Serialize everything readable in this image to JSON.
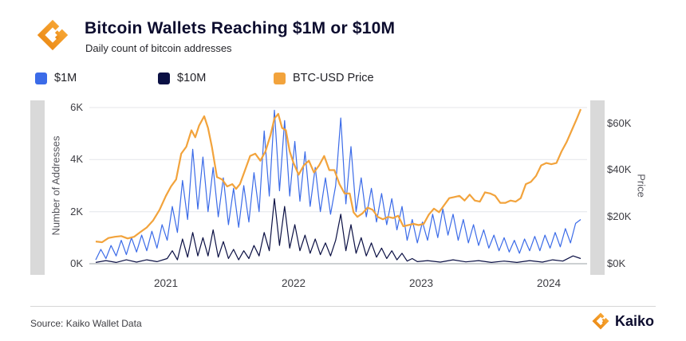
{
  "header": {
    "title": "Bitcoin Wallets Reaching $1M or $10M",
    "subtitle": "Daily count of bitcoin addresses",
    "accent_color": "#F59E1B",
    "title_color": "#0C0C2E"
  },
  "footer": {
    "source": "Source: Kaiko Wallet Data",
    "brand": "Kaiko"
  },
  "chart_data": {
    "type": "line",
    "title": "Bitcoin Wallets Reaching $1M or $10M",
    "subtitle": "Daily count of bitcoin addresses",
    "grid": "horizontal",
    "legend_position": "top",
    "x_domain": [
      2020.4,
      2024.3
    ],
    "x_ticks": [
      {
        "value": 2021,
        "label": "2021"
      },
      {
        "value": 2022,
        "label": "2022"
      },
      {
        "value": 2023,
        "label": "2023"
      },
      {
        "value": 2024,
        "label": "2024"
      }
    ],
    "left_axis": {
      "label": "Number of Addresses",
      "unit": "thousands of addresses",
      "max": 6,
      "ticks": [
        {
          "value": 0,
          "label": "0K"
        },
        {
          "value": 2,
          "label": "2K"
        },
        {
          "value": 4,
          "label": "4K"
        },
        {
          "value": 6,
          "label": "6K"
        }
      ]
    },
    "right_axis": {
      "label": "Price",
      "unit": "USD thousands",
      "max": 66.7,
      "ticks": [
        {
          "value": 0,
          "label": "$0K"
        },
        {
          "value": 20,
          "label": "$20K"
        },
        {
          "value": 40,
          "label": "$40K"
        },
        {
          "value": 60,
          "label": "$60K"
        }
      ]
    },
    "series": [
      {
        "name": "$1M",
        "color": "#3B6BE8",
        "axis": "left",
        "points": [
          [
            2020.45,
            0.15
          ],
          [
            2020.49,
            0.55
          ],
          [
            2020.53,
            0.2
          ],
          [
            2020.57,
            0.7
          ],
          [
            2020.61,
            0.3
          ],
          [
            2020.65,
            0.9
          ],
          [
            2020.69,
            0.35
          ],
          [
            2020.73,
            1.0
          ],
          [
            2020.77,
            0.45
          ],
          [
            2020.81,
            1.1
          ],
          [
            2020.85,
            0.5
          ],
          [
            2020.89,
            1.25
          ],
          [
            2020.93,
            0.6
          ],
          [
            2020.97,
            1.5
          ],
          [
            2021.01,
            0.9
          ],
          [
            2021.05,
            2.2
          ],
          [
            2021.09,
            1.2
          ],
          [
            2021.13,
            3.2
          ],
          [
            2021.17,
            1.7
          ],
          [
            2021.21,
            4.4
          ],
          [
            2021.25,
            2.1
          ],
          [
            2021.29,
            4.1
          ],
          [
            2021.33,
            2.0
          ],
          [
            2021.37,
            3.7
          ],
          [
            2021.41,
            1.8
          ],
          [
            2021.45,
            3.3
          ],
          [
            2021.49,
            1.5
          ],
          [
            2021.53,
            2.9
          ],
          [
            2021.57,
            1.4
          ],
          [
            2021.61,
            3.0
          ],
          [
            2021.65,
            1.6
          ],
          [
            2021.69,
            3.5
          ],
          [
            2021.73,
            2.0
          ],
          [
            2021.77,
            5.1
          ],
          [
            2021.81,
            2.6
          ],
          [
            2021.85,
            5.9
          ],
          [
            2021.89,
            2.8
          ],
          [
            2021.93,
            5.5
          ],
          [
            2021.97,
            2.6
          ],
          [
            2022.01,
            4.7
          ],
          [
            2022.05,
            2.4
          ],
          [
            2022.09,
            4.3
          ],
          [
            2022.13,
            2.2
          ],
          [
            2022.17,
            3.7
          ],
          [
            2022.21,
            2.0
          ],
          [
            2022.25,
            3.3
          ],
          [
            2022.29,
            1.9
          ],
          [
            2022.33,
            3.0
          ],
          [
            2022.37,
            5.6
          ],
          [
            2022.41,
            2.3
          ],
          [
            2022.45,
            4.5
          ],
          [
            2022.49,
            2.0
          ],
          [
            2022.53,
            3.3
          ],
          [
            2022.57,
            1.8
          ],
          [
            2022.61,
            2.9
          ],
          [
            2022.65,
            1.6
          ],
          [
            2022.69,
            2.7
          ],
          [
            2022.73,
            1.5
          ],
          [
            2022.77,
            2.5
          ],
          [
            2022.81,
            1.3
          ],
          [
            2022.85,
            2.2
          ],
          [
            2022.89,
            0.9
          ],
          [
            2022.93,
            1.7
          ],
          [
            2022.97,
            0.8
          ],
          [
            2023.01,
            1.6
          ],
          [
            2023.05,
            0.9
          ],
          [
            2023.09,
            1.9
          ],
          [
            2023.13,
            1.0
          ],
          [
            2023.17,
            2.1
          ],
          [
            2023.21,
            1.1
          ],
          [
            2023.25,
            1.9
          ],
          [
            2023.29,
            0.9
          ],
          [
            2023.33,
            1.7
          ],
          [
            2023.37,
            0.8
          ],
          [
            2023.41,
            1.5
          ],
          [
            2023.45,
            0.7
          ],
          [
            2023.49,
            1.3
          ],
          [
            2023.53,
            0.6
          ],
          [
            2023.57,
            1.1
          ],
          [
            2023.61,
            0.5
          ],
          [
            2023.65,
            1.0
          ],
          [
            2023.69,
            0.45
          ],
          [
            2023.73,
            0.9
          ],
          [
            2023.77,
            0.4
          ],
          [
            2023.81,
            0.95
          ],
          [
            2023.85,
            0.5
          ],
          [
            2023.89,
            1.05
          ],
          [
            2023.93,
            0.5
          ],
          [
            2023.97,
            1.1
          ],
          [
            2024.01,
            0.6
          ],
          [
            2024.05,
            1.2
          ],
          [
            2024.09,
            0.65
          ],
          [
            2024.13,
            1.35
          ],
          [
            2024.17,
            0.8
          ],
          [
            2024.21,
            1.55
          ],
          [
            2024.25,
            1.7
          ]
        ]
      },
      {
        "name": "$10M",
        "color": "#0B1044",
        "axis": "left",
        "points": [
          [
            2020.45,
            0.05
          ],
          [
            2020.53,
            0.12
          ],
          [
            2020.61,
            0.05
          ],
          [
            2020.69,
            0.15
          ],
          [
            2020.77,
            0.06
          ],
          [
            2020.85,
            0.15
          ],
          [
            2020.93,
            0.08
          ],
          [
            2021.01,
            0.2
          ],
          [
            2021.05,
            0.5
          ],
          [
            2021.09,
            0.15
          ],
          [
            2021.13,
            0.95
          ],
          [
            2021.17,
            0.25
          ],
          [
            2021.21,
            1.2
          ],
          [
            2021.25,
            0.3
          ],
          [
            2021.29,
            1.0
          ],
          [
            2021.33,
            0.3
          ],
          [
            2021.37,
            1.3
          ],
          [
            2021.41,
            0.25
          ],
          [
            2021.45,
            0.85
          ],
          [
            2021.49,
            0.2
          ],
          [
            2021.53,
            0.55
          ],
          [
            2021.57,
            0.15
          ],
          [
            2021.61,
            0.5
          ],
          [
            2021.65,
            0.2
          ],
          [
            2021.69,
            0.7
          ],
          [
            2021.73,
            0.3
          ],
          [
            2021.77,
            1.2
          ],
          [
            2021.81,
            0.5
          ],
          [
            2021.85,
            2.5
          ],
          [
            2021.89,
            0.7
          ],
          [
            2021.93,
            2.2
          ],
          [
            2021.97,
            0.6
          ],
          [
            2022.01,
            1.5
          ],
          [
            2022.05,
            0.5
          ],
          [
            2022.09,
            1.1
          ],
          [
            2022.13,
            0.4
          ],
          [
            2022.17,
            0.95
          ],
          [
            2022.21,
            0.35
          ],
          [
            2022.25,
            0.8
          ],
          [
            2022.29,
            0.3
          ],
          [
            2022.33,
            0.9
          ],
          [
            2022.37,
            1.9
          ],
          [
            2022.41,
            0.5
          ],
          [
            2022.45,
            1.5
          ],
          [
            2022.49,
            0.4
          ],
          [
            2022.53,
            1.0
          ],
          [
            2022.57,
            0.3
          ],
          [
            2022.61,
            0.8
          ],
          [
            2022.65,
            0.25
          ],
          [
            2022.69,
            0.6
          ],
          [
            2022.73,
            0.2
          ],
          [
            2022.77,
            0.5
          ],
          [
            2022.81,
            0.15
          ],
          [
            2022.85,
            0.4
          ],
          [
            2022.89,
            0.1
          ],
          [
            2022.93,
            0.2
          ],
          [
            2022.97,
            0.08
          ],
          [
            2023.05,
            0.12
          ],
          [
            2023.15,
            0.06
          ],
          [
            2023.25,
            0.15
          ],
          [
            2023.35,
            0.07
          ],
          [
            2023.45,
            0.12
          ],
          [
            2023.55,
            0.05
          ],
          [
            2023.65,
            0.1
          ],
          [
            2023.75,
            0.05
          ],
          [
            2023.85,
            0.12
          ],
          [
            2023.95,
            0.06
          ],
          [
            2024.03,
            0.15
          ],
          [
            2024.11,
            0.1
          ],
          [
            2024.19,
            0.3
          ],
          [
            2024.25,
            0.2
          ]
        ]
      },
      {
        "name": "BTC-USD Price",
        "color": "#F2A33C",
        "axis": "right",
        "points": [
          [
            2020.45,
            9.5
          ],
          [
            2020.5,
            9.2
          ],
          [
            2020.55,
            11.0
          ],
          [
            2020.6,
            11.5
          ],
          [
            2020.65,
            11.8
          ],
          [
            2020.7,
            10.8
          ],
          [
            2020.75,
            11.5
          ],
          [
            2020.8,
            13.5
          ],
          [
            2020.85,
            15.5
          ],
          [
            2020.9,
            18.5
          ],
          [
            2020.95,
            23.0
          ],
          [
            2021.0,
            29.0
          ],
          [
            2021.04,
            33.0
          ],
          [
            2021.08,
            36.0
          ],
          [
            2021.12,
            47.0
          ],
          [
            2021.16,
            50.0
          ],
          [
            2021.2,
            57.0
          ],
          [
            2021.23,
            54.0
          ],
          [
            2021.26,
            59.0
          ],
          [
            2021.3,
            63.0
          ],
          [
            2021.33,
            58.0
          ],
          [
            2021.36,
            50.0
          ],
          [
            2021.4,
            37.0
          ],
          [
            2021.44,
            36.0
          ],
          [
            2021.48,
            33.0
          ],
          [
            2021.52,
            34.0
          ],
          [
            2021.55,
            32.0
          ],
          [
            2021.58,
            34.0
          ],
          [
            2021.62,
            40.0
          ],
          [
            2021.66,
            46.0
          ],
          [
            2021.7,
            47.0
          ],
          [
            2021.74,
            44.0
          ],
          [
            2021.78,
            48.0
          ],
          [
            2021.82,
            55.0
          ],
          [
            2021.85,
            62.0
          ],
          [
            2021.88,
            64.0
          ],
          [
            2021.91,
            58.0
          ],
          [
            2021.94,
            57.0
          ],
          [
            2021.97,
            48.0
          ],
          [
            2022.0,
            43.0
          ],
          [
            2022.04,
            38.0
          ],
          [
            2022.08,
            42.0
          ],
          [
            2022.12,
            44.0
          ],
          [
            2022.16,
            39.0
          ],
          [
            2022.2,
            42.0
          ],
          [
            2022.24,
            46.0
          ],
          [
            2022.28,
            40.0
          ],
          [
            2022.32,
            40.0
          ],
          [
            2022.36,
            34.0
          ],
          [
            2022.4,
            30.0
          ],
          [
            2022.44,
            30.0
          ],
          [
            2022.47,
            22.0
          ],
          [
            2022.5,
            20.0
          ],
          [
            2022.54,
            21.5
          ],
          [
            2022.58,
            24.0
          ],
          [
            2022.62,
            23.0
          ],
          [
            2022.66,
            20.0
          ],
          [
            2022.7,
            19.0
          ],
          [
            2022.74,
            20.0
          ],
          [
            2022.78,
            19.5
          ],
          [
            2022.82,
            20.5
          ],
          [
            2022.86,
            16.0
          ],
          [
            2022.9,
            16.5
          ],
          [
            2022.94,
            17.0
          ],
          [
            2022.98,
            16.5
          ],
          [
            2023.02,
            17.0
          ],
          [
            2023.06,
            21.0
          ],
          [
            2023.1,
            23.5
          ],
          [
            2023.14,
            22.0
          ],
          [
            2023.18,
            25.0
          ],
          [
            2023.22,
            28.0
          ],
          [
            2023.26,
            28.5
          ],
          [
            2023.3,
            29.0
          ],
          [
            2023.34,
            27.0
          ],
          [
            2023.38,
            29.5
          ],
          [
            2023.42,
            27.0
          ],
          [
            2023.46,
            26.5
          ],
          [
            2023.5,
            30.5
          ],
          [
            2023.54,
            30.0
          ],
          [
            2023.58,
            29.0
          ],
          [
            2023.62,
            26.0
          ],
          [
            2023.66,
            26.0
          ],
          [
            2023.7,
            27.0
          ],
          [
            2023.74,
            26.5
          ],
          [
            2023.78,
            28.0
          ],
          [
            2023.82,
            34.0
          ],
          [
            2023.86,
            35.0
          ],
          [
            2023.9,
            37.5
          ],
          [
            2023.94,
            42.0
          ],
          [
            2023.98,
            43.0
          ],
          [
            2024.02,
            42.5
          ],
          [
            2024.06,
            43.0
          ],
          [
            2024.1,
            48.0
          ],
          [
            2024.14,
            52.0
          ],
          [
            2024.18,
            57.0
          ],
          [
            2024.22,
            62.0
          ],
          [
            2024.25,
            66.0
          ]
        ]
      }
    ]
  }
}
